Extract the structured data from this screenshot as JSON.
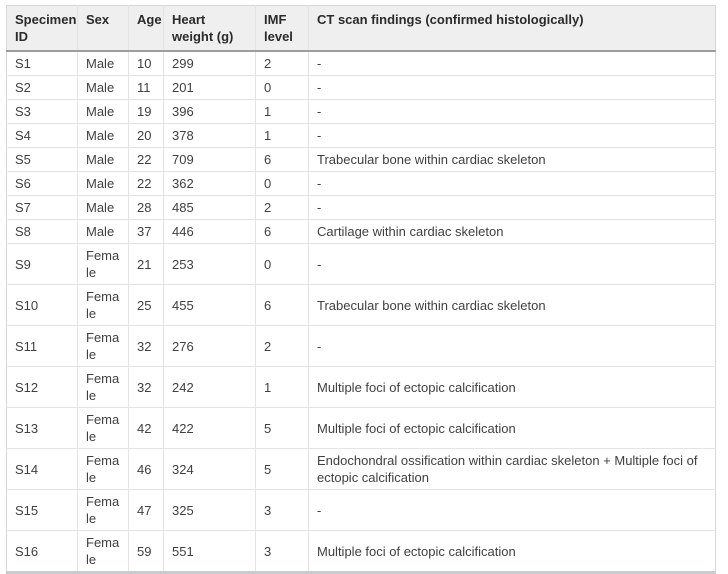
{
  "table": {
    "columns": [
      {
        "key": "id",
        "label": "Specimen ID"
      },
      {
        "key": "sex",
        "label": "Sex"
      },
      {
        "key": "age",
        "label": "Age"
      },
      {
        "key": "heart_weight",
        "label": "Heart weight (g)"
      },
      {
        "key": "imf",
        "label": "IMF level"
      },
      {
        "key": "findings",
        "label": "CT scan findings (confirmed histologically)"
      }
    ],
    "rows": [
      {
        "id": "S1",
        "sex": "Male",
        "age": "10",
        "heart_weight": "299",
        "imf": "2",
        "findings": "-"
      },
      {
        "id": "S2",
        "sex": "Male",
        "age": "11",
        "heart_weight": "201",
        "imf": "0",
        "findings": "-"
      },
      {
        "id": "S3",
        "sex": "Male",
        "age": "19",
        "heart_weight": "396",
        "imf": "1",
        "findings": "-"
      },
      {
        "id": "S4",
        "sex": "Male",
        "age": "20",
        "heart_weight": "378",
        "imf": "1",
        "findings": "-"
      },
      {
        "id": "S5",
        "sex": "Male",
        "age": "22",
        "heart_weight": "709",
        "imf": "6",
        "findings": "Trabecular bone within cardiac skeleton"
      },
      {
        "id": "S6",
        "sex": "Male",
        "age": "22",
        "heart_weight": "362",
        "imf": "0",
        "findings": "-"
      },
      {
        "id": "S7",
        "sex": "Male",
        "age": "28",
        "heart_weight": "485",
        "imf": "2",
        "findings": "-"
      },
      {
        "id": "S8",
        "sex": "Male",
        "age": "37",
        "heart_weight": "446",
        "imf": "6",
        "findings": "Cartilage within cardiac skeleton"
      },
      {
        "id": "S9",
        "sex": "Female",
        "age": "21",
        "heart_weight": "253",
        "imf": "0",
        "findings": "-"
      },
      {
        "id": "S10",
        "sex": "Female",
        "age": "25",
        "heart_weight": "455",
        "imf": "6",
        "findings": "Trabecular bone within cardiac skeleton"
      },
      {
        "id": "S11",
        "sex": "Female",
        "age": "32",
        "heart_weight": "276",
        "imf": "2",
        "findings": "-"
      },
      {
        "id": "S12",
        "sex": "Female",
        "age": "32",
        "heart_weight": "242",
        "imf": "1",
        "findings": "Multiple foci of ectopic calcification"
      },
      {
        "id": "S13",
        "sex": "Female",
        "age": "42",
        "heart_weight": "422",
        "imf": "5",
        "findings": "Multiple foci of ectopic calcification"
      },
      {
        "id": "S14",
        "sex": "Female",
        "age": "46",
        "heart_weight": "324",
        "imf": "5",
        "findings": "Endochondral ossification within cardiac skeleton + Multiple foci of ectopic calcification"
      },
      {
        "id": "S15",
        "sex": "Female",
        "age": "47",
        "heart_weight": "325",
        "imf": "3",
        "findings": "-"
      },
      {
        "id": "S16",
        "sex": "Female",
        "age": "59",
        "heart_weight": "551",
        "imf": "3",
        "findings": "Multiple foci of ectopic calcification"
      }
    ]
  },
  "colors": {
    "header_bg": "#efefef",
    "header_text": "#2b2b2b",
    "body_text": "#404040",
    "grid_line": "#e4e4e4",
    "header_border": "#9d9d9d",
    "outer_border": "#d7d7d7"
  }
}
